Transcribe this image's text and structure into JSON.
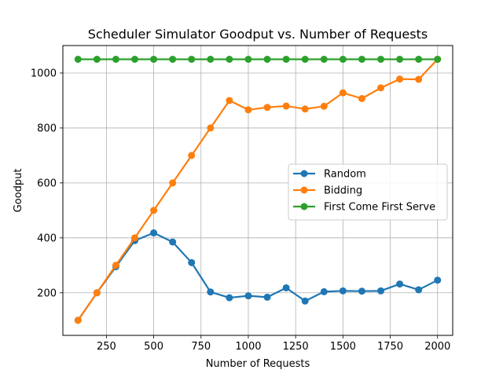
{
  "chart_data": {
    "type": "line",
    "title": "Scheduler Simulator Goodput vs. Number of Requests",
    "xlabel": "Number of Requests",
    "ylabel": "Goodput",
    "xlim": [
      20,
      2080
    ],
    "ylim": [
      45,
      1100
    ],
    "xticks": [
      250,
      500,
      750,
      1000,
      1250,
      1500,
      1750,
      2000
    ],
    "yticks": [
      200,
      400,
      600,
      800,
      1000
    ],
    "grid": true,
    "legend_position": "center-right",
    "x": [
      100,
      200,
      300,
      400,
      500,
      600,
      700,
      800,
      900,
      1000,
      1100,
      1200,
      1300,
      1400,
      1500,
      1600,
      1700,
      1800,
      1900,
      2000
    ],
    "series": [
      {
        "name": "Random",
        "color": "#1f77b4",
        "values": [
          100,
          200,
          295,
          390,
          418,
          385,
          310,
          203,
          182,
          189,
          184,
          218,
          170,
          204,
          207,
          206,
          207,
          232,
          211,
          246
        ]
      },
      {
        "name": "Bidding",
        "color": "#ff7f0e",
        "values": [
          100,
          200,
          300,
          400,
          500,
          600,
          700,
          800,
          900,
          866,
          875,
          880,
          869,
          879,
          928,
          907,
          946,
          978,
          977,
          1050
        ]
      },
      {
        "name": "First Come First Serve",
        "color": "#2ca02c",
        "values": [
          1050,
          1050,
          1050,
          1050,
          1050,
          1050,
          1050,
          1050,
          1050,
          1050,
          1050,
          1050,
          1050,
          1050,
          1050,
          1050,
          1050,
          1050,
          1050,
          1050
        ]
      }
    ]
  }
}
